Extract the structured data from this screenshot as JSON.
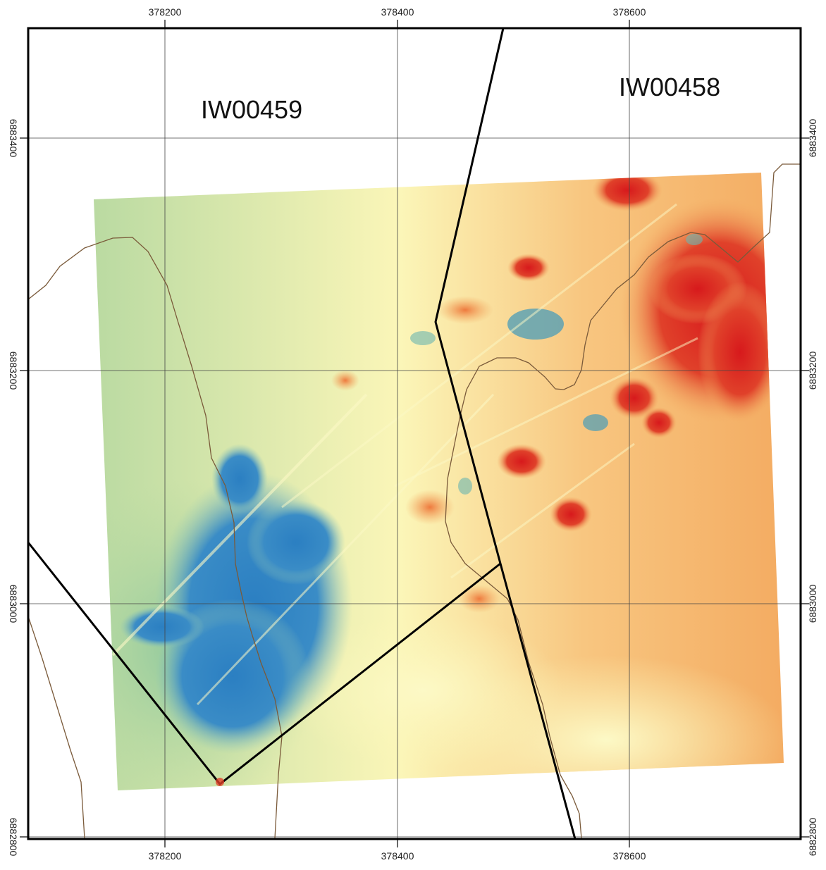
{
  "map": {
    "region_labels": [
      "IW00459",
      "IW00458"
    ],
    "x_ticks": [
      "378200",
      "378400",
      "378600"
    ],
    "y_ticks": [
      "6883400",
      "6883200",
      "6883000",
      "6882800"
    ],
    "grid": true,
    "colors": {
      "low": "#2b7fc2",
      "mid_low": "#a8d3a0",
      "mid": "#fbf8c0",
      "mid_high": "#f6ba74",
      "high": "#d7191c",
      "boundary": "#000000",
      "contour": "#7a5a3a"
    },
    "legend": "none"
  }
}
